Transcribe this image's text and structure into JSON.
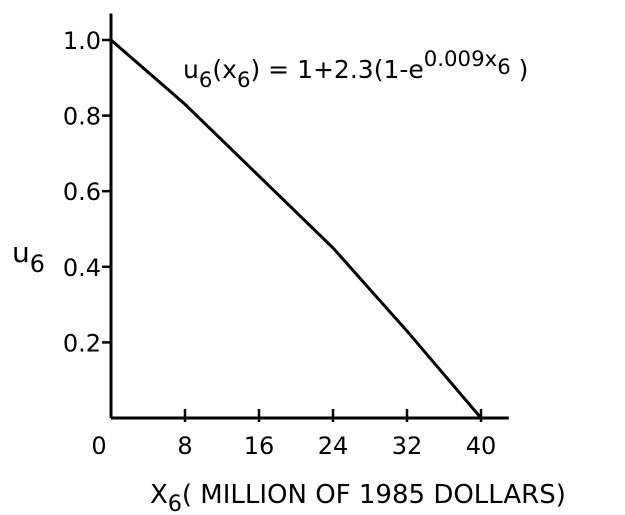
{
  "chart_data": {
    "type": "line",
    "x": [
      0,
      8,
      16,
      24,
      32,
      40
    ],
    "values": [
      1.0,
      0.83,
      0.64,
      0.45,
      0.23,
      0.0
    ],
    "color": "#000000",
    "xlim": [
      0,
      43
    ],
    "ylim": [
      0,
      1.07
    ],
    "xticks": [
      0,
      8,
      16,
      24,
      32,
      40
    ],
    "yticks": [
      0.2,
      0.4,
      0.6,
      0.8,
      {
        "value": 1,
        "label": "1.0"
      }
    ],
    "ylabel": [
      "u",
      "6"
    ],
    "xlabel": [
      "X",
      "6",
      "( MILLION OF 1985 DOLLARS)"
    ],
    "annotation": [
      "u",
      "6",
      "(x",
      "6",
      ") = 1+2.3(1-e",
      "0.009x",
      "6",
      " )"
    ],
    "grid": false
  }
}
